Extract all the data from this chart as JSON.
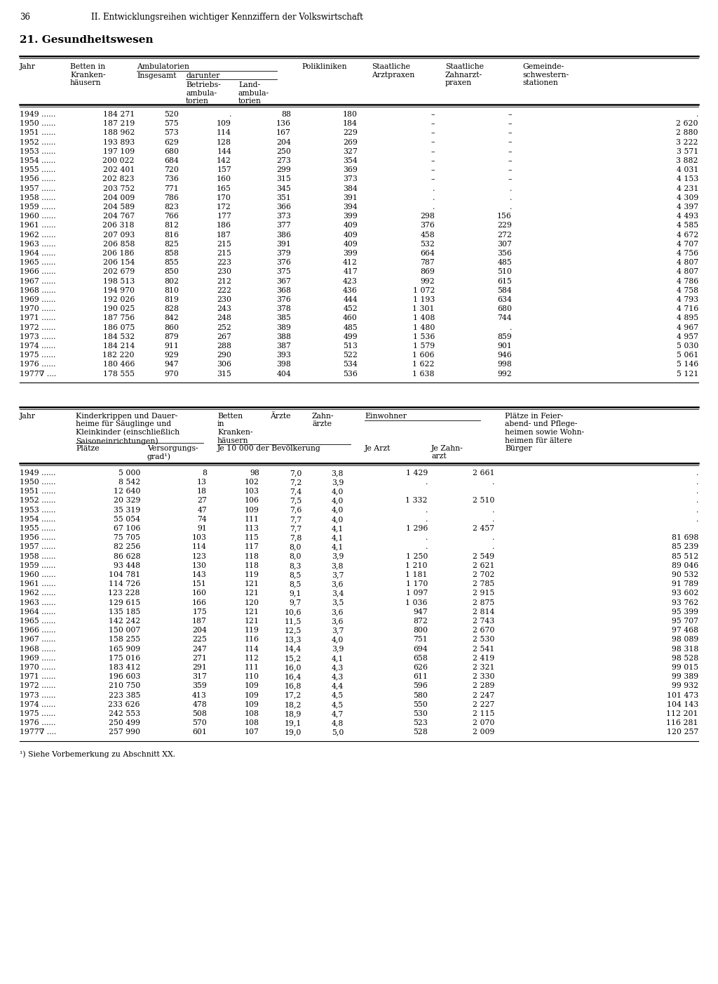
{
  "page_number": "36",
  "page_header": "II. Entwicklungsreihen wichtiger Kennziffern der Volkswirtschaft",
  "section_title": "21. Gesundheitswesen",
  "table1_rows": [
    [
      "1949 ......",
      "184 271",
      "520",
      ".",
      "88",
      "180",
      "–",
      "–",
      "."
    ],
    [
      "1950 ......",
      "187 219",
      "575",
      "109",
      "136",
      "184",
      "–",
      "–",
      "2 620"
    ],
    [
      "1951 ......",
      "188 962",
      "573",
      "114",
      "167",
      "229",
      "–",
      "–",
      "2 880"
    ],
    [
      "1952 ......",
      "193 893",
      "629",
      "128",
      "204",
      "269",
      "–",
      "–",
      "3 222"
    ],
    [
      "1953 ......",
      "197 109",
      "680",
      "144",
      "250",
      "327",
      "–",
      "–",
      "3 571"
    ],
    [
      "1954 ......",
      "200 022",
      "684",
      "142",
      "273",
      "354",
      "–",
      "–",
      "3 882"
    ],
    [
      "1955 ......",
      "202 401",
      "720",
      "157",
      "299",
      "369",
      "–",
      "–",
      "4 031"
    ],
    [
      "1956 ......",
      "202 823",
      "736",
      "160",
      "315",
      "373",
      "–",
      "–",
      "4 153"
    ],
    [
      "1957 ......",
      "203 752",
      "771",
      "165",
      "345",
      "384",
      ".",
      ".",
      "4 231"
    ],
    [
      "1958 ......",
      "204 009",
      "786",
      "170",
      "351",
      "391",
      ".",
      ".",
      "4 309"
    ],
    [
      "1959 ......",
      "204 589",
      "823",
      "172",
      "366",
      "394",
      ".",
      ".",
      "4 397"
    ],
    [
      "1960 ......",
      "204 767",
      "766",
      "177",
      "373",
      "399",
      "298",
      "156",
      "4 493"
    ],
    [
      "1961 ......",
      "206 318",
      "812",
      "186",
      "377",
      "409",
      "376",
      "229",
      "4 585"
    ],
    [
      "1962 ......",
      "207 093",
      "816",
      "187",
      "386",
      "409",
      "458",
      "272",
      "4 672"
    ],
    [
      "1963 ......",
      "206 858",
      "825",
      "215",
      "391",
      "409",
      "532",
      "307",
      "4 707"
    ],
    [
      "1964 ......",
      "206 186",
      "858",
      "215",
      "379",
      "399",
      "664",
      "356",
      "4 756"
    ],
    [
      "1965 ......",
      "206 154",
      "855",
      "223",
      "376",
      "412",
      "787",
      "485",
      "4 807"
    ],
    [
      "1966 ......",
      "202 679",
      "850",
      "230",
      "375",
      "417",
      "869",
      "510",
      "4 807"
    ],
    [
      "1967 ......",
      "198 513",
      "802",
      "212",
      "367",
      "423",
      "992",
      "615",
      "4 786"
    ],
    [
      "1968 ......",
      "194 970",
      "810",
      "222",
      "368",
      "436",
      "1 072",
      "584",
      "4 758"
    ],
    [
      "1969 ......",
      "192 026",
      "819",
      "230",
      "376",
      "444",
      "1 193",
      "634",
      "4 793"
    ],
    [
      "1970 ......",
      "190 025",
      "828",
      "243",
      "378",
      "452",
      "1 301",
      "680",
      "4 716"
    ],
    [
      "1971 ......",
      "187 756",
      "842",
      "248",
      "385",
      "460",
      "1 408",
      "744",
      "4 895"
    ],
    [
      "1972 ......",
      "186 075",
      "860",
      "252",
      "389",
      "485",
      "1 480",
      ".",
      "4 967"
    ],
    [
      "1973 ......",
      "184 532",
      "879",
      "267",
      "388",
      "499",
      "1 536",
      "859",
      "4 957"
    ],
    [
      "1974 ......",
      "184 214",
      "911",
      "288",
      "387",
      "513",
      "1 579",
      "901",
      "5 030"
    ],
    [
      "1975 ......",
      "182 220",
      "929",
      "290",
      "393",
      "522",
      "1 606",
      "946",
      "5 061"
    ],
    [
      "1976 ......",
      "180 466",
      "947",
      "306",
      "398",
      "534",
      "1 622",
      "998",
      "5 146"
    ],
    [
      "1977∇ ....",
      "178 555",
      "970",
      "315",
      "404",
      "536",
      "1 638",
      "992",
      "5 121"
    ]
  ],
  "table2_rows": [
    [
      "1949 ......",
      "5 000",
      "8",
      "98",
      "7,0",
      "3,8",
      "1 429",
      "2 661",
      "."
    ],
    [
      "1950 ......",
      "8 542",
      "13",
      "102",
      "7,2",
      "3,9",
      ".",
      ".",
      "."
    ],
    [
      "1951 ......",
      "12 640",
      "18",
      "103",
      "7,4",
      "4,0",
      "",
      "",
      "."
    ],
    [
      "1952 ......",
      "20 329",
      "27",
      "106",
      "7,5",
      "4,0",
      "1 332",
      "2 510",
      "."
    ],
    [
      "1953 ......",
      "35 319",
      "47",
      "109",
      "7,6",
      "4,0",
      ".",
      ".",
      "."
    ],
    [
      "1954 ......",
      "55 054",
      "74",
      "111",
      "7,7",
      "4,0",
      ".",
      ".",
      "."
    ],
    [
      "1955 ......",
      "67 106",
      "91",
      "113",
      "7,7",
      "4,1",
      "1 296",
      "2 457",
      ""
    ],
    [
      "1956 ......",
      "75 705",
      "103",
      "115",
      "7,8",
      "4,1",
      ".",
      ".",
      "81 698"
    ],
    [
      "1957 ......",
      "82 256",
      "114",
      "117",
      "8,0",
      "4,1",
      ".",
      ".",
      "85 239"
    ],
    [
      "1958 ......",
      "86 628",
      "123",
      "118",
      "8,0",
      "3,9",
      "1 250",
      "2 549",
      "85 512"
    ],
    [
      "1959 ......",
      "93 448",
      "130",
      "118",
      "8,3",
      "3,8",
      "1 210",
      "2 621",
      "89 046"
    ],
    [
      "1960 ......",
      "104 781",
      "143",
      "119",
      "8,5",
      "3,7",
      "1 181",
      "2 702",
      "90 532"
    ],
    [
      "1961 ......",
      "114 726",
      "151",
      "121",
      "8,5",
      "3,6",
      "1 170",
      "2 785",
      "91 789"
    ],
    [
      "1962 ......",
      "123 228",
      "160",
      "121",
      "9,1",
      "3,4",
      "1 097",
      "2 915",
      "93 602"
    ],
    [
      "1963 ......",
      "129 615",
      "166",
      "120",
      "9,7",
      "3,5",
      "1 036",
      "2 875",
      "93 762"
    ],
    [
      "1964 ......",
      "135 185",
      "175",
      "121",
      "10,6",
      "3,6",
      "947",
      "2 814",
      "95 399"
    ],
    [
      "1965 ......",
      "142 242",
      "187",
      "121",
      "11,5",
      "3,6",
      "872",
      "2 743",
      "95 707"
    ],
    [
      "1966 ......",
      "150 007",
      "204",
      "119",
      "12,5",
      "3,7",
      "800",
      "2 670",
      "97 468"
    ],
    [
      "1967 ......",
      "158 255",
      "225",
      "116",
      "13,3",
      "4,0",
      "751",
      "2 530",
      "98 089"
    ],
    [
      "1968 ......",
      "165 909",
      "247",
      "114",
      "14,4",
      "3,9",
      "694",
      "2 541",
      "98 318"
    ],
    [
      "1969 ......",
      "175 016",
      "271",
      "112",
      "15,2",
      "4,1",
      "658",
      "2 419",
      "98 528"
    ],
    [
      "1970 ......",
      "183 412",
      "291",
      "111",
      "16,0",
      "4,3",
      "626",
      "2 321",
      "99 015"
    ],
    [
      "1971 ......",
      "196 603",
      "317",
      "110",
      "16,4",
      "4,3",
      "611",
      "2 330",
      "99 389"
    ],
    [
      "1972 ......",
      "210 750",
      "359",
      "109",
      "16,8",
      "4,4",
      "596",
      "2 289",
      "99 932"
    ],
    [
      "1973 ......",
      "223 385",
      "413",
      "109",
      "17,2",
      "4,5",
      "580",
      "2 247",
      "101 473"
    ],
    [
      "1974 ......",
      "233 626",
      "478",
      "109",
      "18,2",
      "4,5",
      "550",
      "2 227",
      "104 143"
    ],
    [
      "1975 ......",
      "242 553",
      "508",
      "108",
      "18,9",
      "4,7",
      "530",
      "2 115",
      "112 201"
    ],
    [
      "1976 ......",
      "250 499",
      "570",
      "108",
      "19,1",
      "4,8",
      "523",
      "2 070",
      "116 281"
    ],
    [
      "1977∇ ....",
      "257 990",
      "601",
      "107",
      "19,0",
      "5,0",
      "528",
      "2 009",
      "120 257"
    ]
  ],
  "footnote": "¹) Siehe Vorbemerkung zu Abschnitt XX."
}
